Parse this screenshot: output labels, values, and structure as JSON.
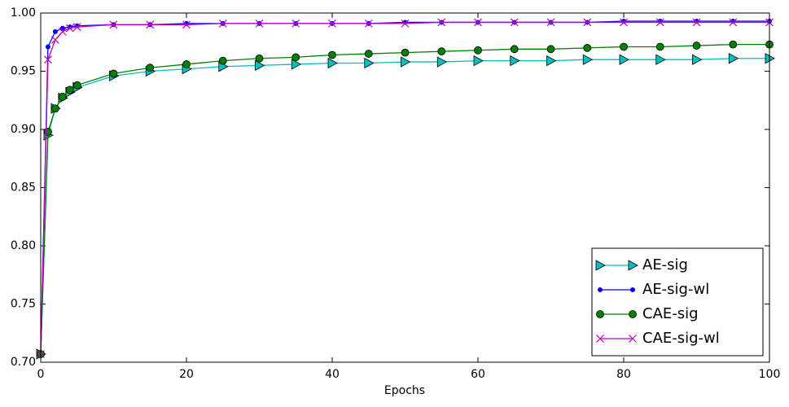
{
  "chart_data": {
    "type": "line",
    "x_label": "Epochs",
    "x": [
      0,
      1,
      2,
      3,
      4,
      5,
      10,
      15,
      20,
      25,
      30,
      35,
      40,
      45,
      50,
      55,
      60,
      65,
      70,
      75,
      80,
      85,
      90,
      95,
      100
    ],
    "series": [
      {
        "name": "AE-sig",
        "color": "#00bfbf",
        "marker": "triangle-right",
        "values": [
          0.707,
          0.895,
          0.918,
          0.927,
          0.932,
          0.936,
          0.946,
          0.95,
          0.952,
          0.954,
          0.955,
          0.956,
          0.957,
          0.957,
          0.958,
          0.958,
          0.959,
          0.959,
          0.959,
          0.96,
          0.96,
          0.96,
          0.96,
          0.961,
          0.961
        ]
      },
      {
        "name": "AE-sig-wl",
        "color": "#0000ff",
        "marker": "dot",
        "values": [
          0.707,
          0.971,
          0.984,
          0.987,
          0.988,
          0.989,
          0.99,
          0.99,
          0.991,
          0.991,
          0.991,
          0.991,
          0.991,
          0.991,
          0.992,
          0.992,
          0.992,
          0.992,
          0.992,
          0.992,
          0.993,
          0.993,
          0.993,
          0.993,
          0.993
        ]
      },
      {
        "name": "CAE-sig",
        "color": "#008000",
        "marker": "circle",
        "values": [
          0.707,
          0.898,
          0.918,
          0.928,
          0.934,
          0.938,
          0.948,
          0.953,
          0.956,
          0.959,
          0.961,
          0.962,
          0.964,
          0.965,
          0.966,
          0.967,
          0.968,
          0.969,
          0.969,
          0.97,
          0.971,
          0.971,
          0.972,
          0.973,
          0.973
        ]
      },
      {
        "name": "CAE-sig-wl",
        "color": "#bf00bf",
        "marker": "x",
        "values": [
          0.707,
          0.96,
          0.977,
          0.984,
          0.987,
          0.988,
          0.99,
          0.99,
          0.99,
          0.991,
          0.991,
          0.991,
          0.991,
          0.991,
          0.991,
          0.992,
          0.992,
          0.992,
          0.992,
          0.992,
          0.992,
          0.992,
          0.992,
          0.992,
          0.992
        ]
      }
    ],
    "xlim": [
      0,
      100
    ],
    "xticks": [
      0,
      20,
      40,
      60,
      80,
      100
    ],
    "ylim": [
      0.7,
      1.0
    ],
    "yticks": [
      {
        "value": 0.7,
        "label": "0.70"
      },
      0.75,
      {
        "value": 0.8,
        "label": "0.80"
      },
      0.85,
      {
        "value": 0.9,
        "label": "0.90"
      },
      0.95,
      {
        "value": 1.0,
        "label": "1.00"
      }
    ],
    "grid": false,
    "legend": "lower right"
  }
}
